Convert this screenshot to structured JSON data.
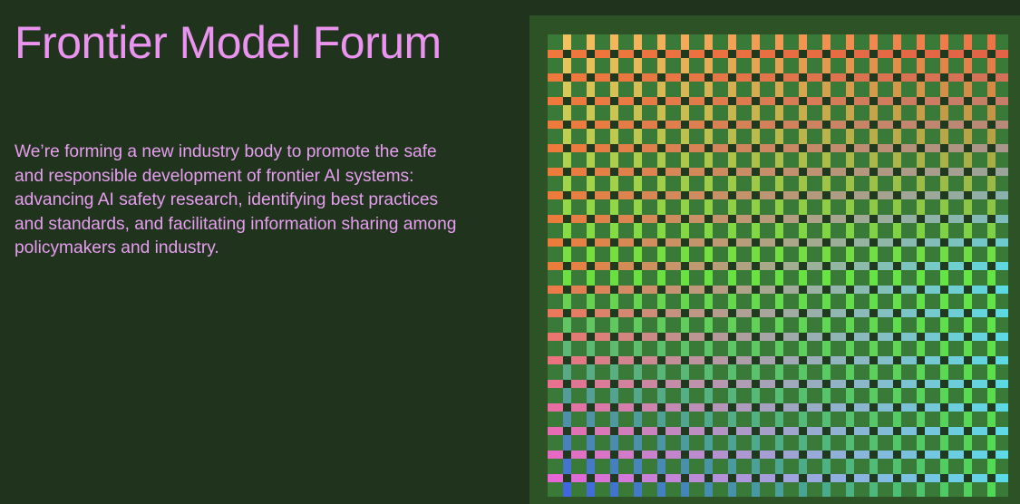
{
  "hero": {
    "title": "Frontier Model Forum",
    "description": "We’re forming a new industry body to promote the safe and responsible development of frontier AI systems: advancing AI safety research, identifying best practices and standards, and facilitating information sharing among policymakers and industry."
  },
  "colors": {
    "background": "#20331d",
    "text": "#ea94f0",
    "frame": "#2c5226",
    "cell": "#3a7a38"
  }
}
